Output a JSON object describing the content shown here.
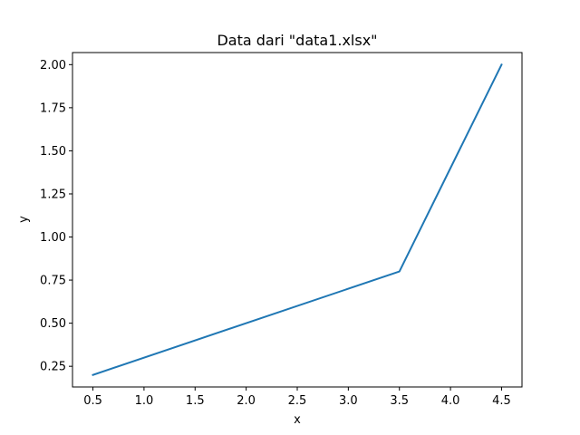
{
  "chart_data": {
    "type": "line",
    "title": "Data dari \"data1.xlsx\"",
    "xlabel": "x",
    "ylabel": "y",
    "xlim": [
      0.3,
      4.7
    ],
    "ylim": [
      0.13,
      2.07
    ],
    "x_ticks": [
      0.5,
      1.0,
      1.5,
      2.0,
      2.5,
      3.0,
      3.5,
      4.0,
      4.5
    ],
    "x_tick_labels": [
      "0.5",
      "1.0",
      "1.5",
      "2.0",
      "2.5",
      "3.0",
      "3.5",
      "4.0",
      "4.5"
    ],
    "y_ticks": [
      0.25,
      0.5,
      0.75,
      1.0,
      1.25,
      1.5,
      1.75,
      2.0
    ],
    "y_tick_labels": [
      "0.25",
      "0.50",
      "0.75",
      "1.00",
      "1.25",
      "1.50",
      "1.75",
      "2.00"
    ],
    "grid": false,
    "series": [
      {
        "x": [
          0.5,
          3.5,
          4.5
        ],
        "y": [
          0.2,
          0.8,
          2.0
        ],
        "color": "#1f77b4"
      }
    ]
  }
}
